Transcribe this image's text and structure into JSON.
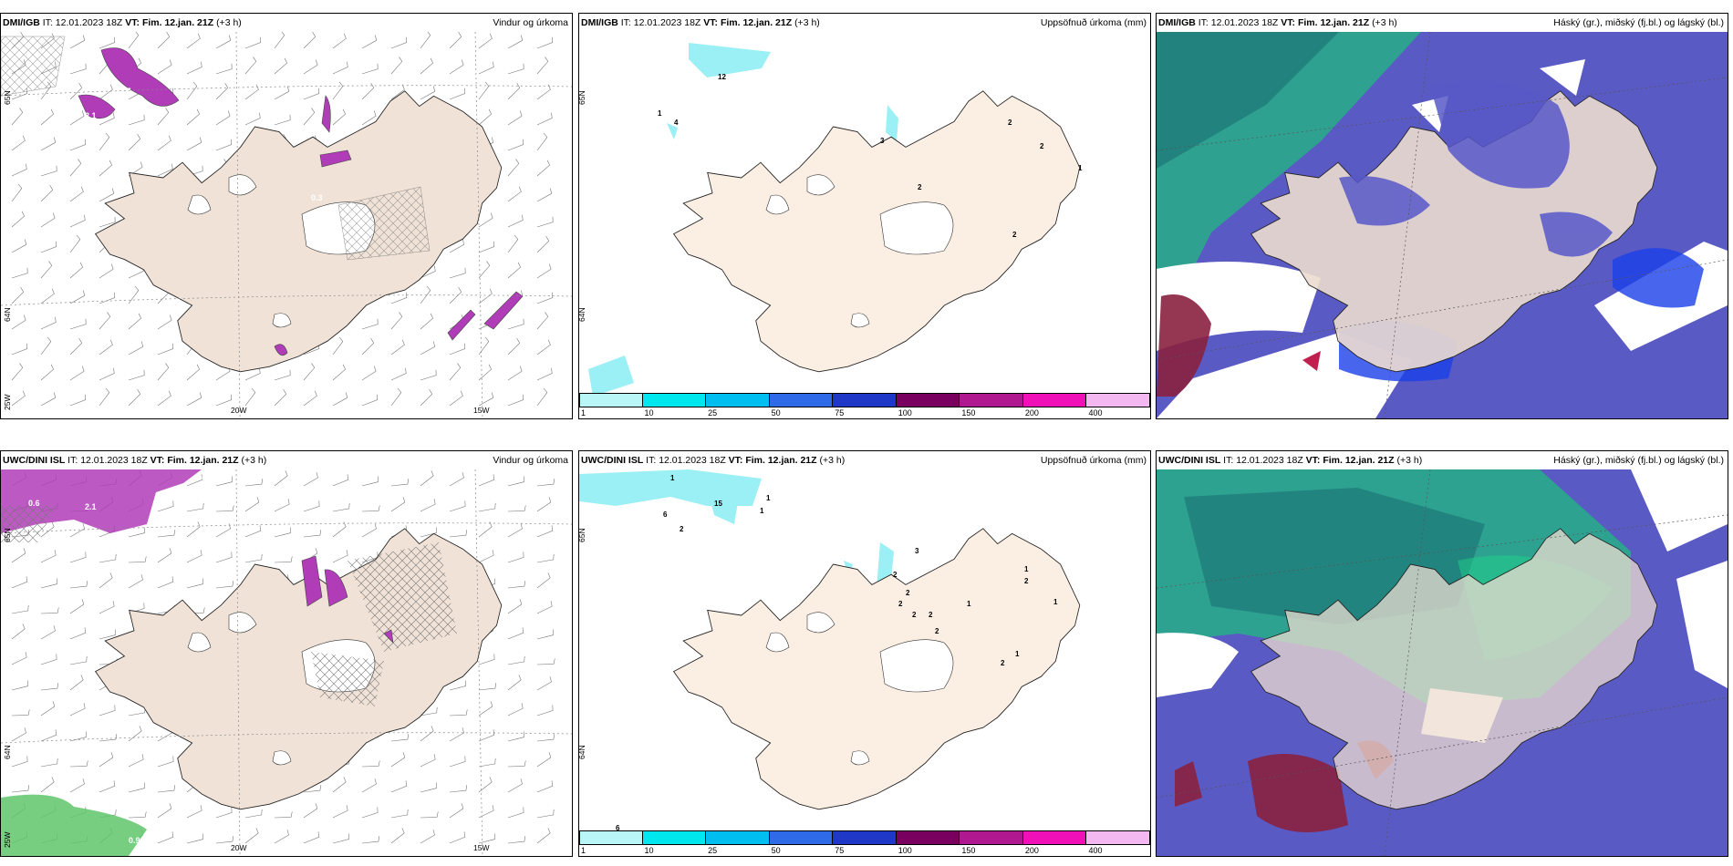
{
  "rows": [
    {
      "model": "DMI/IGB",
      "panels": [
        {
          "id": "wind",
          "model": "DMI/IGB",
          "init_label": "IT:",
          "init_value": "12.01.2023 18Z",
          "vt_label": "VT:",
          "vt_value": "Fim. 12.jan. 21Z",
          "lead": "(+3 h)",
          "title": "Vindur og úrkoma",
          "labels": [
            {
              "text": "0.7"
            },
            {
              "text": "3.1"
            },
            {
              "text": "0.3"
            }
          ],
          "grid": {
            "lat": [
              "65N",
              "64N"
            ],
            "lon": [
              "20W",
              "15W"
            ],
            "left_lon": "25W"
          }
        },
        {
          "id": "precip",
          "model": "DMI/IGB",
          "init_label": "IT:",
          "init_value": "12.01.2023 18Z",
          "vt_label": "VT:",
          "vt_value": "Fim. 12.jan. 21Z",
          "lead": "(+3 h)",
          "title": "Uppsöfnuð úrkoma (mm)",
          "labels": [
            "12",
            "4",
            "1",
            "3",
            "2",
            "2",
            "2",
            "1",
            "2"
          ],
          "grid": {
            "lat": [
              "65N",
              "64N"
            ]
          }
        },
        {
          "id": "cloud",
          "model": "DMI/IGB",
          "init_label": "IT:",
          "init_value": "12.01.2023 18Z",
          "vt_label": "VT:",
          "vt_value": "Fim. 12.jan. 21Z",
          "lead": "(+3 h)",
          "title": "Háský (gr.), miðský (fj.bl.) og lágský (bl.)"
        }
      ]
    },
    {
      "model": "UWC/DINI ISL",
      "panels": [
        {
          "id": "wind",
          "model": "UWC/DINI ISL",
          "init_label": "IT:",
          "init_value": "12.01.2023 18Z",
          "vt_label": "VT:",
          "vt_value": "Fim. 12.jan. 21Z",
          "lead": "(+3 h)",
          "title": "Vindur og úrkoma",
          "labels": [
            {
              "text": "0.4"
            },
            {
              "text": "0.6"
            },
            {
              "text": "2.1"
            },
            {
              "text": "0.6"
            },
            {
              "text": "0.9"
            }
          ],
          "grid": {
            "lat": [
              "65N",
              "64N"
            ],
            "lon": [
              "20W",
              "15W"
            ],
            "left_lon": "25W"
          }
        },
        {
          "id": "precip",
          "model": "UWC/DINI ISL",
          "init_label": "IT:",
          "init_value": "12.01.2023 18Z",
          "vt_label": "VT:",
          "vt_value": "Fim. 12.jan. 21Z",
          "lead": "(+3 h)",
          "title": "Uppsöfnuð úrkoma (mm)",
          "labels": [
            "1",
            "1",
            "1",
            "6",
            "2",
            "15",
            "3",
            "2",
            "2",
            "2",
            "2",
            "2",
            "2",
            "1",
            "2",
            "1",
            "1",
            "1",
            "2",
            "6"
          ],
          "grid": {
            "lat": [
              "65N",
              "64N"
            ]
          }
        },
        {
          "id": "cloud",
          "model": "UWC/DINI ISL",
          "init_label": "IT:",
          "init_value": "12.01.2023 18Z",
          "vt_label": "VT:",
          "vt_value": "Fim. 12.jan. 21Z",
          "lead": "(+3 h)",
          "title": "Háský (gr.), miðský (fj.bl.) og lágský (bl.)"
        }
      ]
    }
  ],
  "colorbar": {
    "ticks": [
      "1",
      "10",
      "25",
      "50",
      "75",
      "100",
      "150",
      "200",
      "400"
    ],
    "colors": [
      "#b8f6f8",
      "#00e8ee",
      "#00bff0",
      "#2f6be8",
      "#2038c8",
      "#7a0060",
      "#b01890",
      "#f010b8",
      "#f4b8f0"
    ]
  },
  "colors": {
    "land": "#f0e2d6",
    "precip_land": "#fbeee3",
    "ice": "#ffffff",
    "sea": "#ffffff",
    "wind_precip": "#b03cb8",
    "high_cloud": "#2aa88c",
    "mid_cloud": "#5858c8",
    "low_cloud": "#1a40e8",
    "cyan_precip": "#9af0f4"
  }
}
